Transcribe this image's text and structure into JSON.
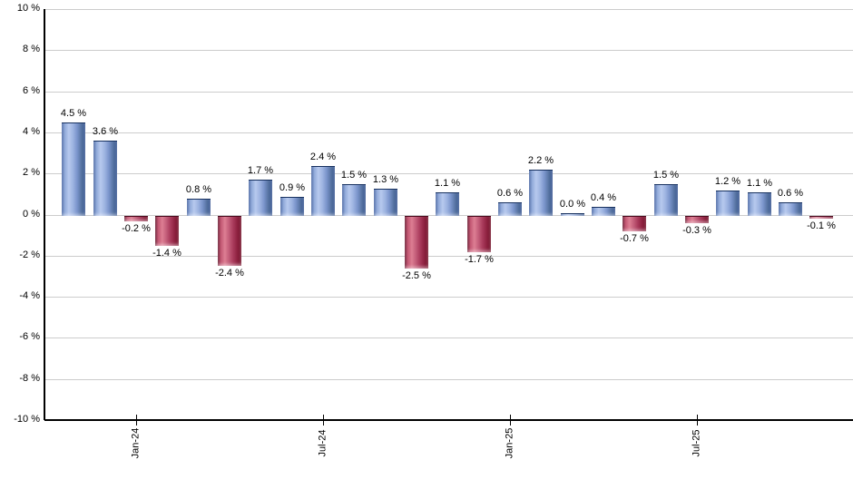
{
  "chart_data": {
    "type": "bar",
    "title": "",
    "xlabel": "",
    "ylabel": "",
    "grid": true,
    "legend": false,
    "ylim": [
      -10,
      10
    ],
    "values": [
      4.5,
      3.6,
      -0.2,
      -1.4,
      0.8,
      -2.4,
      1.7,
      0.9,
      2.4,
      1.5,
      1.3,
      -2.5,
      1.1,
      -1.7,
      0.6,
      2.2,
      0.0,
      0.4,
      -0.7,
      1.5,
      -0.3,
      1.2,
      1.1,
      0.6,
      -0.1
    ],
    "labels": [
      "4.5 %",
      "3.6 %",
      "-0.2 %",
      "-1.4 %",
      "0.8 %",
      "-2.4 %",
      "1.7 %",
      "0.9 %",
      "2.4 %",
      "1.5 %",
      "1.3 %",
      "-2.5 %",
      "1.1 %",
      "-1.7 %",
      "0.6 %",
      "2.2 %",
      "0.0 %",
      "0.4 %",
      "-0.7 %",
      "1.5 %",
      "-0.3 %",
      "1.2 %",
      "1.1 %",
      "0.6 %",
      "-0.1 %"
    ],
    "y_axis": {
      "tick_labels": [
        "10 %",
        "8 %",
        "6 %",
        "4 %",
        "2 %",
        "0 %",
        "-2 %",
        "-4 %",
        "-6 %",
        "-8 %",
        "-10 %"
      ]
    },
    "x_axis": {
      "tick_labels": [
        {
          "label": "Jan-24",
          "bar_index": 2
        },
        {
          "label": "Jul-24",
          "bar_index": 8
        },
        {
          "label": "Jan-25",
          "bar_index": 14
        },
        {
          "label": "Jul-25",
          "bar_index": 20
        }
      ]
    },
    "colors": {
      "background": "#ffffff",
      "gridline": "#cccccc",
      "axis": "#000000",
      "text": "#000000",
      "positive_gradient": [
        "#3d5c9c",
        "#8fa8d8",
        "#b7c9ee",
        "#9db3e0",
        "#7b95cc",
        "#54719f",
        "#33518f"
      ],
      "positive_gradient_stops": [
        0,
        12,
        30,
        48,
        65,
        85,
        100
      ],
      "positive_border": "#16305f",
      "negative_gradient": [
        "#5e0d23",
        "#c15571",
        "#dd7e93",
        "#c25c78",
        "#a93a5b",
        "#8a1f3d",
        "#731129"
      ],
      "negative_gradient_stops": [
        0,
        12,
        30,
        48,
        65,
        85,
        100
      ],
      "negative_border": "#4d0a1e"
    }
  }
}
